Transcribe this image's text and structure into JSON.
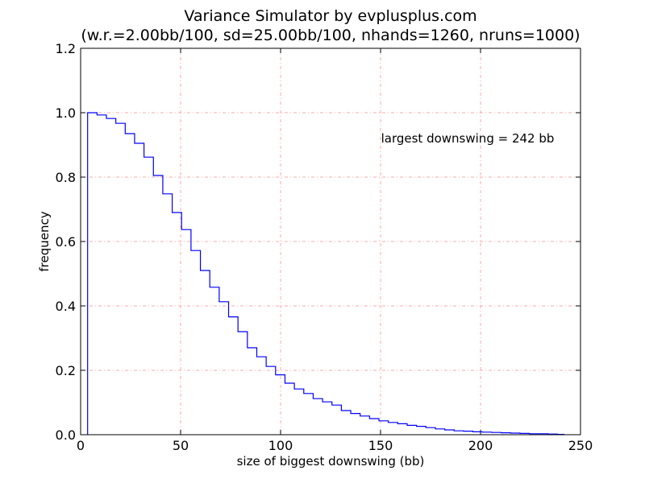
{
  "chart_data": {
    "type": "line",
    "drawstyle": "steps",
    "title": "Variance Simulator by evplusplus.com",
    "subtitle": "(w.r.=2.00bb/100, sd=25.00bb/100, nhands=1260, nruns=1000)",
    "xlabel": "size of biggest downswing (bb)",
    "ylabel": "frequency",
    "xlim": [
      0,
      250
    ],
    "ylim": [
      0,
      1.2
    ],
    "xticks": [
      0,
      50,
      100,
      150,
      200,
      250
    ],
    "xtick_labels": [
      "0",
      "50",
      "100",
      "150",
      "200",
      "250"
    ],
    "yticks": [
      0.0,
      0.2,
      0.4,
      0.6,
      0.8,
      1.0,
      1.2
    ],
    "ytick_labels": [
      "0.0",
      "0.2",
      "0.4",
      "0.6",
      "0.8",
      "1.0",
      "1.2"
    ],
    "grid": true,
    "annotation": "largest downswing = 242 bb",
    "color": "#0000ff",
    "grid_color": "#ffaaaa",
    "x": [
      3.5,
      8.2,
      12.9,
      17.6,
      22.3,
      27.0,
      31.7,
      36.4,
      41.1,
      45.8,
      50.5,
      55.2,
      59.9,
      64.6,
      69.3,
      74.0,
      78.7,
      83.4,
      88.1,
      92.8,
      97.5,
      102.2,
      106.9,
      111.6,
      116.3,
      121.0,
      125.7,
      130.4,
      135.1,
      139.8,
      144.5,
      149.2,
      153.9,
      158.6,
      163.3,
      168.0,
      172.7,
      177.4,
      182.1,
      186.8,
      191.5,
      196.2,
      200.9,
      205.6,
      210.3,
      215.0,
      219.7,
      224.4,
      229.1,
      233.8,
      238.5,
      242.0
    ],
    "values": [
      1.0,
      0.993,
      0.982,
      0.967,
      0.935,
      0.905,
      0.862,
      0.805,
      0.748,
      0.69,
      0.637,
      0.572,
      0.51,
      0.458,
      0.413,
      0.366,
      0.32,
      0.27,
      0.242,
      0.212,
      0.186,
      0.16,
      0.142,
      0.128,
      0.112,
      0.102,
      0.092,
      0.075,
      0.066,
      0.058,
      0.05,
      0.043,
      0.038,
      0.034,
      0.029,
      0.026,
      0.022,
      0.018,
      0.015,
      0.012,
      0.011,
      0.009,
      0.008,
      0.007,
      0.006,
      0.005,
      0.004,
      0.003,
      0.003,
      0.002,
      0.001,
      0.001
    ]
  }
}
